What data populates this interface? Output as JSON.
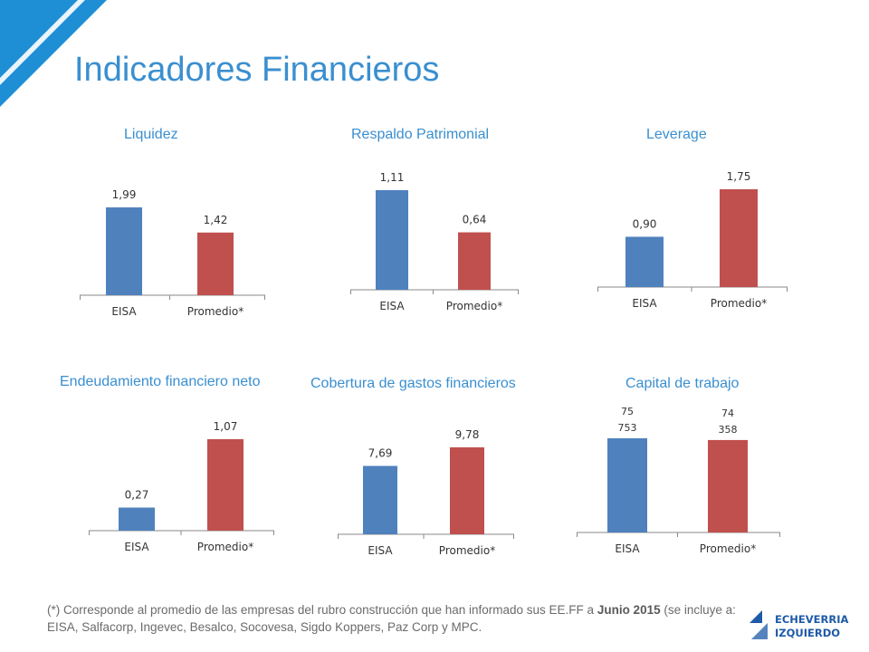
{
  "page": {
    "title": "Indicadores Financieros",
    "footnote": {
      "prefix": "(*) Corresponde al promedio de las empresas del rubro construcción que han informado sus EE.FF a ",
      "bold": "Junio 2015",
      "suffix": " (se incluye a: EISA, Salfacorp, Ingevec, Besalco, Socovesa, Sigdo Koppers, Paz Corp y MPC."
    },
    "logo": {
      "line1": "ECHEVERRIA",
      "line2": "IZQUIERDO"
    },
    "colors": {
      "accent": "#3a8fd0",
      "eisa": "#4f81bd",
      "promedio": "#c0504d",
      "logo": "#1e5aa8"
    }
  },
  "chart_data": [
    {
      "type": "bar",
      "title": "Liquidez",
      "categories": [
        "EISA",
        "Promedio*"
      ],
      "values": [
        1.99,
        1.42
      ],
      "labels": [
        "1,99",
        "1,42"
      ]
    },
    {
      "type": "bar",
      "title": "Respaldo Patrimonial",
      "categories": [
        "EISA",
        "Promedio*"
      ],
      "values": [
        1.11,
        0.64
      ],
      "labels": [
        "1,11",
        "0,64"
      ]
    },
    {
      "type": "bar",
      "title": "Leverage",
      "categories": [
        "EISA",
        "Promedio*"
      ],
      "values": [
        0.9,
        1.75
      ],
      "labels": [
        "0,90",
        "1,75"
      ]
    },
    {
      "type": "bar",
      "title": "Endeudamiento financiero neto",
      "categories": [
        "EISA",
        "Promedio*"
      ],
      "values": [
        0.27,
        1.07
      ],
      "labels": [
        "0,27",
        "1,07"
      ]
    },
    {
      "type": "bar",
      "title": "Cobertura de gastos financieros",
      "categories": [
        "EISA",
        "Promedio*"
      ],
      "values": [
        7.69,
        9.78
      ],
      "labels": [
        "7,69",
        "9,78"
      ]
    },
    {
      "type": "bar",
      "title": "Capital de trabajo",
      "categories": [
        "EISA",
        "Promedio*"
      ],
      "values": [
        75753,
        74358
      ],
      "labels": [
        "75\n753",
        "74\n358"
      ]
    }
  ]
}
